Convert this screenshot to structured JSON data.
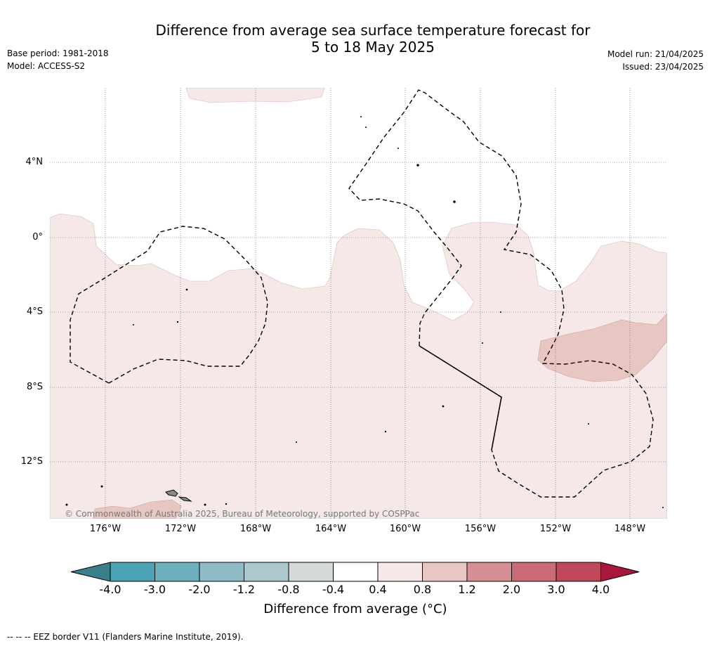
{
  "header": {
    "title_line1": "Difference from average sea surface temperature forecast for",
    "title_line2": "5 to 18 May 2025",
    "base_period": "Base period: 1981-2018",
    "model": "Model: ACCESS-S2",
    "model_run": "Model run: 21/04/2025",
    "issued": "Issued: 23/04/2025"
  },
  "map": {
    "lat_labels": [
      "4°N",
      "0°",
      "4°S",
      "8°S",
      "12°S"
    ],
    "lon_labels": [
      "176°W",
      "172°W",
      "168°W",
      "164°W",
      "160°W",
      "156°W",
      "152°W",
      "148°W"
    ],
    "copyright": "© Commonwealth of Australia 2025, Bureau of Meteorology, supported by COSPPac"
  },
  "colorbar": {
    "ticks": [
      "-4.0",
      "-3.0",
      "-2.0",
      "-1.2",
      "-0.8",
      "-0.4",
      "0.4",
      "0.8",
      "1.2",
      "2.0",
      "3.0",
      "4.0"
    ],
    "colors": [
      "#4aa4b5",
      "#6dafbe",
      "#8fbcc7",
      "#aac8ce",
      "#d4d9d9",
      "#ffffff",
      "#f5e8e7",
      "#e8c6c2",
      "#d68f95",
      "#cb6b75",
      "#c0485a"
    ],
    "under_color": "#3a7f89",
    "over_color": "#a8183a",
    "label": "Difference from average (°C)"
  },
  "footnote": "-- -- -- EEZ border V11 (Flanders Marine Institute, 2019)."
}
